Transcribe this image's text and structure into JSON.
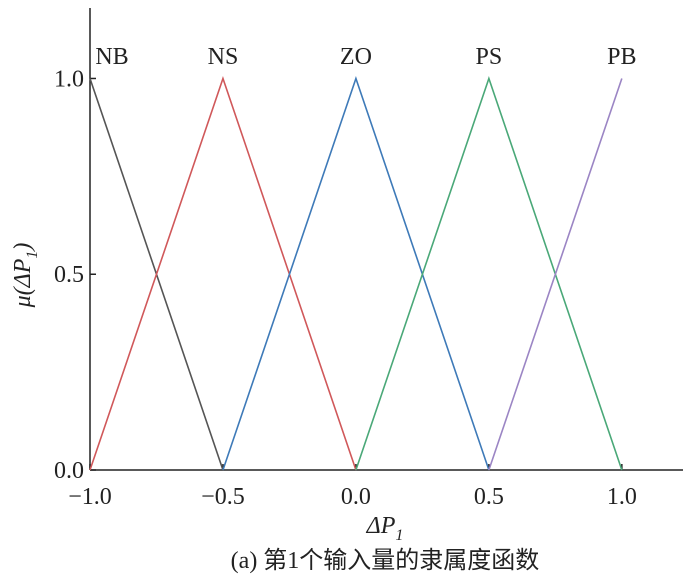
{
  "chart_data": {
    "type": "line",
    "x": [
      -1.0,
      -0.5,
      0.0,
      0.5,
      1.0
    ],
    "series": [
      {
        "name": "NB",
        "color": "#555555",
        "values": [
          1.0,
          0.0,
          null,
          null,
          null
        ]
      },
      {
        "name": "NS",
        "color": "#d0585a",
        "values": [
          0.0,
          1.0,
          0.0,
          null,
          null
        ]
      },
      {
        "name": "ZO",
        "color": "#3e7ab8",
        "values": [
          null,
          0.0,
          1.0,
          0.0,
          null
        ]
      },
      {
        "name": "PS",
        "color": "#4aa878",
        "values": [
          null,
          null,
          0.0,
          1.0,
          0.0
        ]
      },
      {
        "name": "PB",
        "color": "#9b85c4",
        "values": [
          null,
          null,
          null,
          0.0,
          1.0
        ]
      }
    ],
    "xlim": [
      -1.0,
      1.23
    ],
    "ylim": [
      0,
      1.18
    ],
    "xticks": [
      {
        "value": -1.0,
        "label": "−1.0"
      },
      {
        "value": -0.5,
        "label": "−0.5"
      },
      {
        "value": 0.0,
        "label": "0.0"
      },
      {
        "value": 0.5,
        "label": "0.5"
      },
      {
        "value": 1.0,
        "label": "1.0"
      }
    ],
    "yticks": [
      {
        "value": 0.0,
        "label": "0.0"
      },
      {
        "value": 0.5,
        "label": "0.5"
      },
      {
        "value": 1.0,
        "label": "1.0"
      }
    ],
    "x_label": "ΔP",
    "x_label_sub": "1",
    "y_label": "μ(ΔP",
    "y_label_sub": "1",
    "y_label_end": ")",
    "caption": "(a) 第1个输入量的隶属度函数"
  }
}
